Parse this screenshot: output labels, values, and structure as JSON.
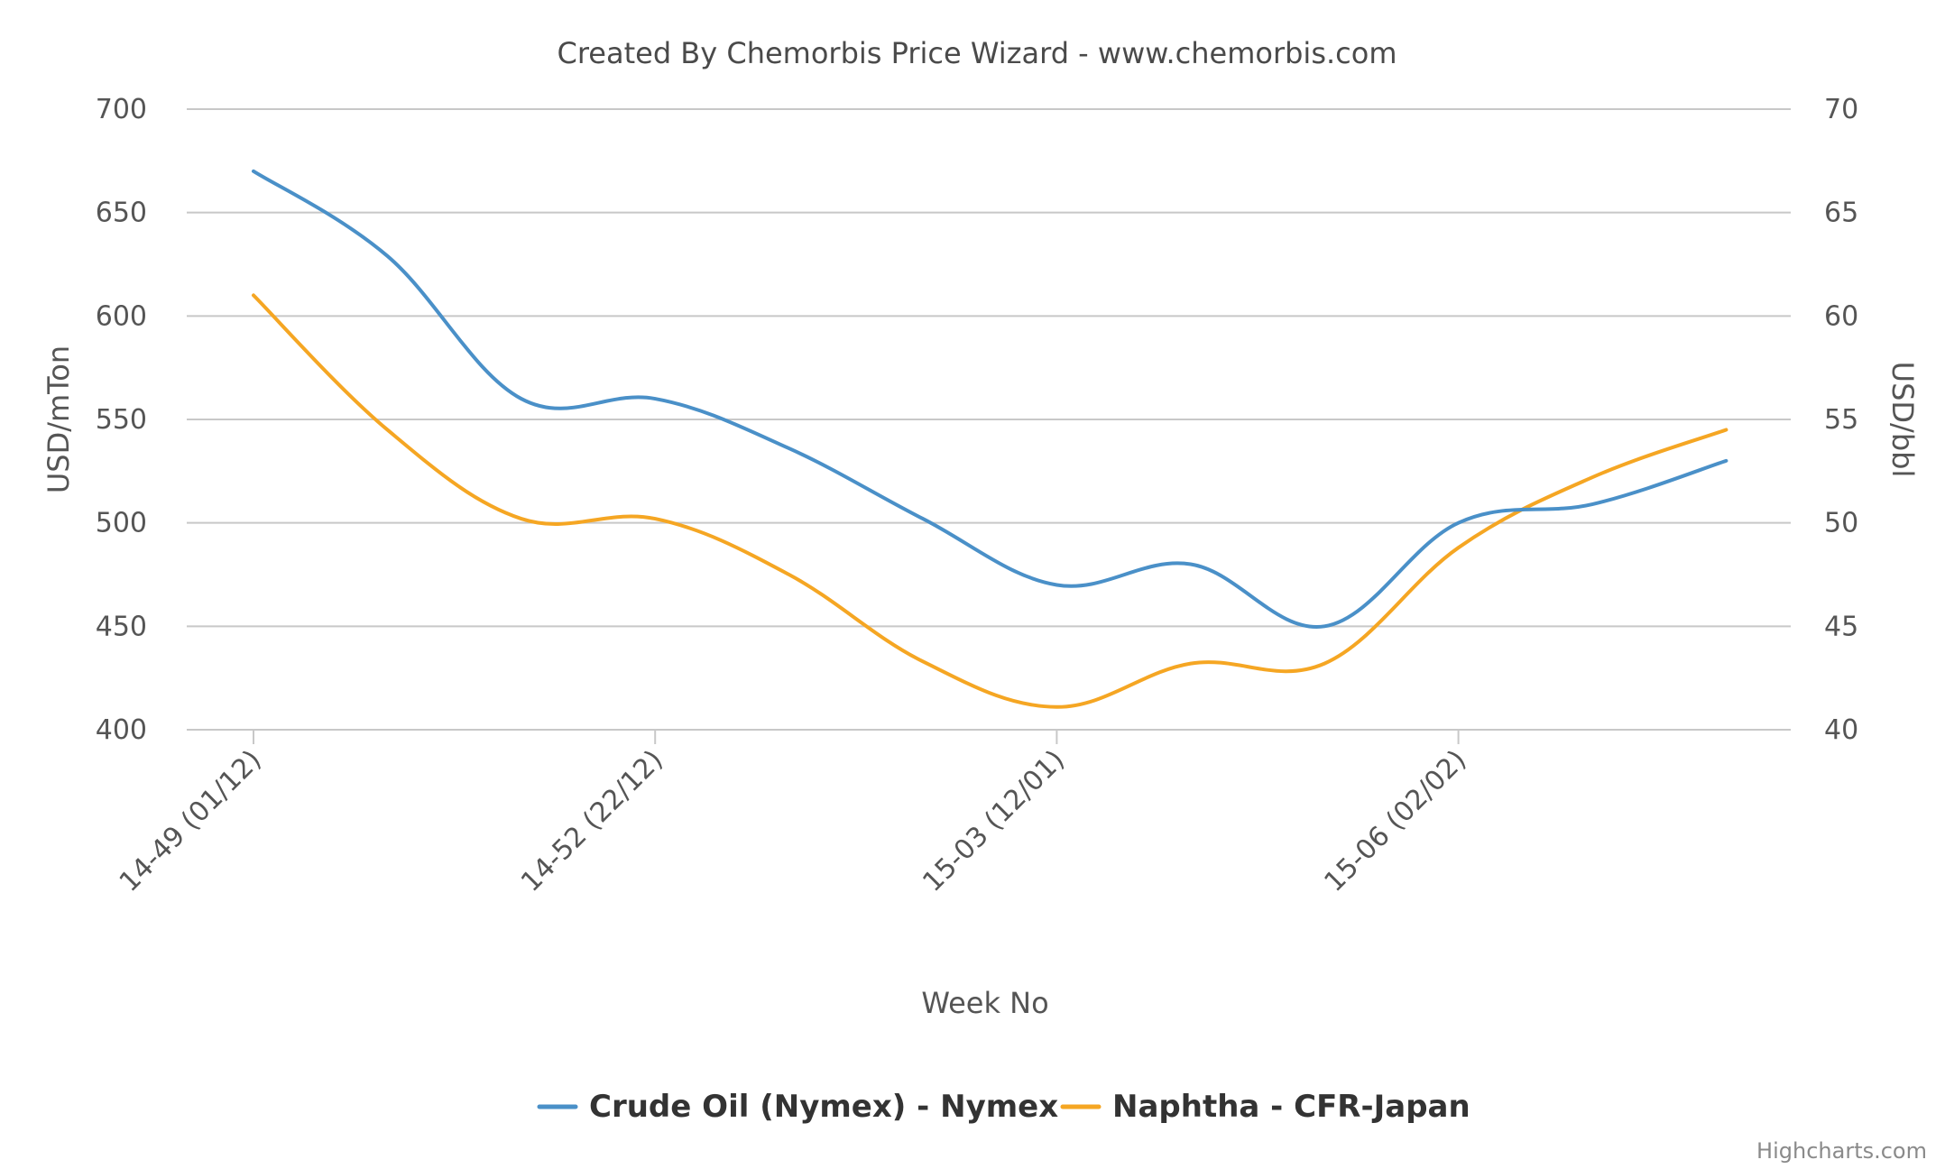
{
  "chart_data": {
    "type": "line",
    "title": "Created By Chemorbis Price Wizard - www.chemorbis.com",
    "xlabel": "Week No",
    "ylabel_left": "USD/mTon",
    "ylabel_right": "USD/bbl",
    "ylim_left": [
      400,
      700
    ],
    "ylim_right": [
      40,
      70
    ],
    "yticks_left": [
      "400",
      "450",
      "500",
      "550",
      "600",
      "650",
      "700"
    ],
    "yticks_right": [
      "40",
      "45",
      "50",
      "55",
      "60",
      "65",
      "70"
    ],
    "x_tick_labels": [
      "14-49 (01/12)",
      "14-52 (22/12)",
      "15-03 (12/01)",
      "15-06 (02/02)"
    ],
    "x_tick_positions": [
      0,
      3,
      6,
      9
    ],
    "grid": true,
    "legend_position": "bottom-center",
    "series": [
      {
        "name": "Crude Oil (Nymex) - Nymex",
        "axis": "right",
        "unit": "USD/bbl",
        "color": "#4a90c8",
        "x": [
          0,
          1,
          2,
          3,
          4,
          5,
          6,
          7,
          8,
          9,
          10,
          11
        ],
        "values": [
          67.0,
          62.9,
          56.0,
          56.0,
          53.6,
          50.2,
          47.0,
          48.0,
          45.0,
          50.0,
          50.9,
          53.0
        ]
      },
      {
        "name": "Naphtha - CFR-Japan",
        "axis": "left",
        "unit": "USD/mTon",
        "color": "#f5a623",
        "x": [
          0,
          1,
          2,
          3,
          4,
          5,
          6,
          7,
          8,
          9,
          10,
          11
        ],
        "values": [
          610,
          545,
          502,
          502,
          475,
          433,
          411,
          432,
          432,
          488,
          522,
          545
        ]
      }
    ]
  },
  "credits": "Highcharts.com"
}
